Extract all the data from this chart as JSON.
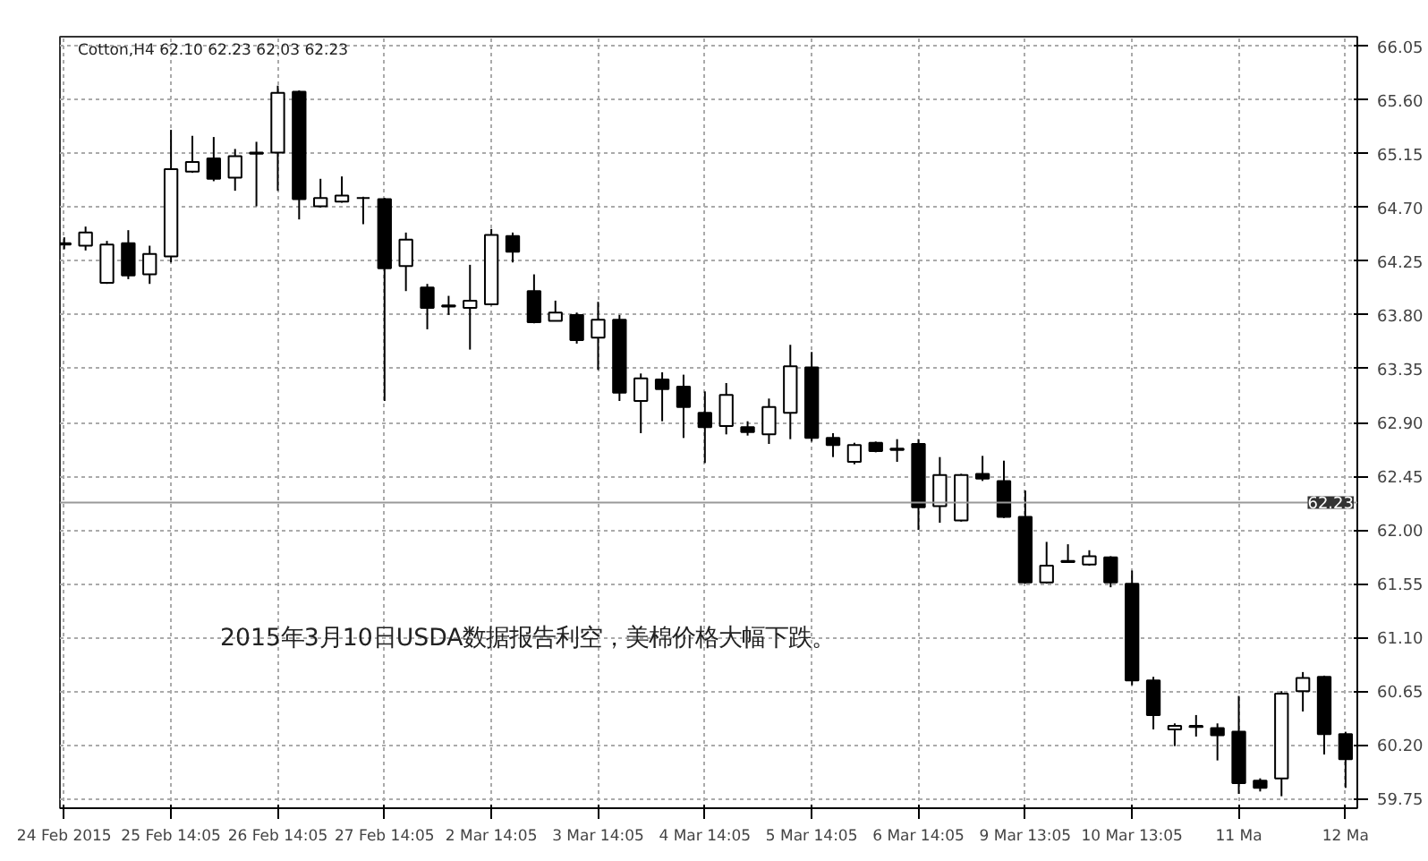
{
  "chart_data": {
    "type": "candlestick",
    "title": "Cotton,H4 62.10 62.23 62.03 62.23",
    "categories": [
      "24 Feb 2015",
      null,
      null,
      null,
      null,
      "25 Feb 14:05",
      null,
      null,
      null,
      null,
      "26 Feb 14:05",
      null,
      null,
      null,
      null,
      "27 Feb 14:05",
      null,
      null,
      null,
      null,
      "2 Mar 14:05",
      null,
      null,
      null,
      null,
      "3 Mar 14:05",
      null,
      null,
      null,
      null,
      "4 Mar 14:05",
      null,
      null,
      null,
      null,
      "5 Mar 14:05",
      null,
      null,
      null,
      null,
      "6 Mar 14:05",
      null,
      null,
      null,
      null,
      "9 Mar 13:05",
      null,
      null,
      null,
      null,
      "10 Mar 13:05",
      null,
      null,
      null,
      null,
      "11 Ma",
      null,
      null,
      null,
      null,
      "12 Ma"
    ],
    "ohlc": [
      [
        64.4,
        64.45,
        64.35,
        64.39
      ],
      [
        64.38,
        64.54,
        64.34,
        64.49
      ],
      [
        64.07,
        64.42,
        64.06,
        64.39
      ],
      [
        64.4,
        64.51,
        64.1,
        64.13
      ],
      [
        64.14,
        64.38,
        64.06,
        64.31
      ],
      [
        64.29,
        65.35,
        64.24,
        65.02
      ],
      [
        65.0,
        65.3,
        64.99,
        65.08
      ],
      [
        65.11,
        65.29,
        64.92,
        64.94
      ],
      [
        64.95,
        65.19,
        64.84,
        65.13
      ],
      [
        65.16,
        65.25,
        64.71,
        65.15
      ],
      [
        65.16,
        65.72,
        64.84,
        65.66
      ],
      [
        65.67,
        65.68,
        64.6,
        64.77
      ],
      [
        64.71,
        64.94,
        64.7,
        64.78
      ],
      [
        64.75,
        64.96,
        64.74,
        64.8
      ],
      [
        64.78,
        64.79,
        64.56,
        64.78
      ],
      [
        64.77,
        64.78,
        63.08,
        64.19
      ],
      [
        64.21,
        64.49,
        64.0,
        64.43
      ],
      [
        64.03,
        64.06,
        63.68,
        63.86
      ],
      [
        63.88,
        63.96,
        63.8,
        63.87
      ],
      [
        63.86,
        64.22,
        63.51,
        63.92
      ],
      [
        63.89,
        64.52,
        63.88,
        64.47
      ],
      [
        64.46,
        64.49,
        64.24,
        64.33
      ],
      [
        64.0,
        64.14,
        63.73,
        63.74
      ],
      [
        63.75,
        63.92,
        63.75,
        63.82
      ],
      [
        63.8,
        63.82,
        63.56,
        63.59
      ],
      [
        63.61,
        63.91,
        63.34,
        63.76
      ],
      [
        63.76,
        63.8,
        63.08,
        63.15
      ],
      [
        63.08,
        63.31,
        62.81,
        63.27
      ],
      [
        63.26,
        63.32,
        62.91,
        63.18
      ],
      [
        63.2,
        63.3,
        62.77,
        63.03
      ],
      [
        62.98,
        63.16,
        62.56,
        62.86
      ],
      [
        62.87,
        63.23,
        62.8,
        63.13
      ],
      [
        62.86,
        62.91,
        62.79,
        62.82
      ],
      [
        62.8,
        63.1,
        62.72,
        63.03
      ],
      [
        62.98,
        63.55,
        62.76,
        63.37
      ],
      [
        63.36,
        63.49,
        62.74,
        62.77
      ],
      [
        62.77,
        62.81,
        62.61,
        62.71
      ],
      [
        62.57,
        62.73,
        62.55,
        62.71
      ],
      [
        62.73,
        62.74,
        62.65,
        62.66
      ],
      [
        62.68,
        62.76,
        62.57,
        62.67
      ],
      [
        62.72,
        62.76,
        62.0,
        62.19
      ],
      [
        62.2,
        62.61,
        62.06,
        62.46
      ],
      [
        62.08,
        62.47,
        62.07,
        62.46
      ],
      [
        62.47,
        62.62,
        62.41,
        62.43
      ],
      [
        62.41,
        62.58,
        62.1,
        62.11
      ],
      [
        62.11,
        62.33,
        61.55,
        61.56
      ],
      [
        61.56,
        61.9,
        61.55,
        61.7
      ],
      [
        61.74,
        61.88,
        61.73,
        61.73
      ],
      [
        61.71,
        61.83,
        61.7,
        61.78
      ],
      [
        61.77,
        61.78,
        61.52,
        61.56
      ],
      [
        61.55,
        61.66,
        60.7,
        60.74
      ],
      [
        60.74,
        60.77,
        60.33,
        60.45
      ],
      [
        60.33,
        60.38,
        60.19,
        60.36
      ],
      [
        60.36,
        60.45,
        60.27,
        60.35
      ],
      [
        60.34,
        60.38,
        60.07,
        60.28
      ],
      [
        60.31,
        60.61,
        59.79,
        59.88
      ],
      [
        59.9,
        59.92,
        59.81,
        59.84
      ],
      [
        59.92,
        60.65,
        59.77,
        60.63
      ],
      [
        60.65,
        60.81,
        60.48,
        60.76
      ],
      [
        60.77,
        60.78,
        60.12,
        60.29
      ],
      [
        60.29,
        60.31,
        59.84,
        60.08
      ]
    ],
    "ylim": [
      59.67,
      66.13
    ],
    "yticks": [
      59.75,
      {
        "value": 60.2,
        "label": "60.20"
      },
      60.65,
      {
        "value": 61.1,
        "label": "61.10"
      },
      61.55,
      {
        "value": 62.0,
        "label": "62.00"
      },
      62.45,
      {
        "value": 62.9,
        "label": "62.90"
      },
      63.35,
      {
        "value": 63.8,
        "label": "63.80"
      },
      64.25,
      {
        "value": 64.7,
        "label": "64.70"
      },
      65.15,
      {
        "value": 65.6,
        "label": "65.60"
      },
      66.05
    ],
    "ref_lines": [
      {
        "axis": "y",
        "value": 62.23,
        "label": "62.23",
        "color": "#999999"
      }
    ],
    "annotations": [
      "2015年3月10日USDA数据报告利空，美棉价格大幅下跌。"
    ],
    "grid": true
  }
}
